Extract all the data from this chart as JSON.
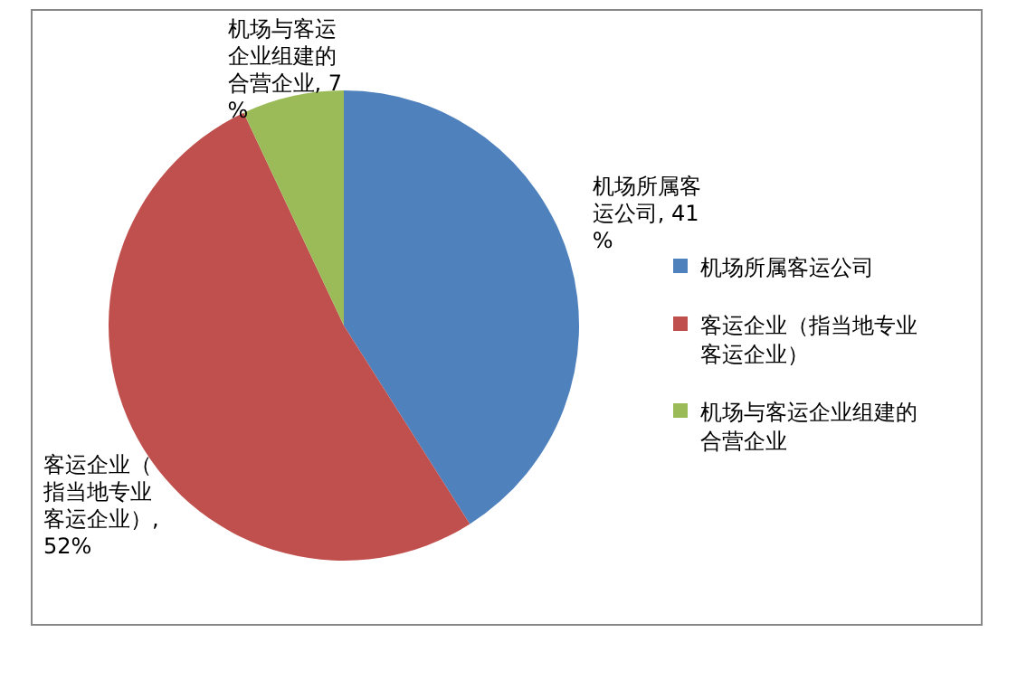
{
  "chart_data": {
    "type": "pie",
    "categories": [
      "机场所属客运公司",
      "客运企业（指当地专业客运企业）",
      "机场与客运企业组建的合营企业"
    ],
    "values": [
      41,
      52,
      7
    ],
    "colors": [
      "#4f81bd",
      "#c0504d",
      "#9bbb59"
    ],
    "value_labels": [
      "机场所属客运公司, 41%",
      "客运企业（指当地专业客运企业）, 52%",
      "机场与客运企业组建的合营企业, 7%"
    ],
    "legend": "right"
  }
}
